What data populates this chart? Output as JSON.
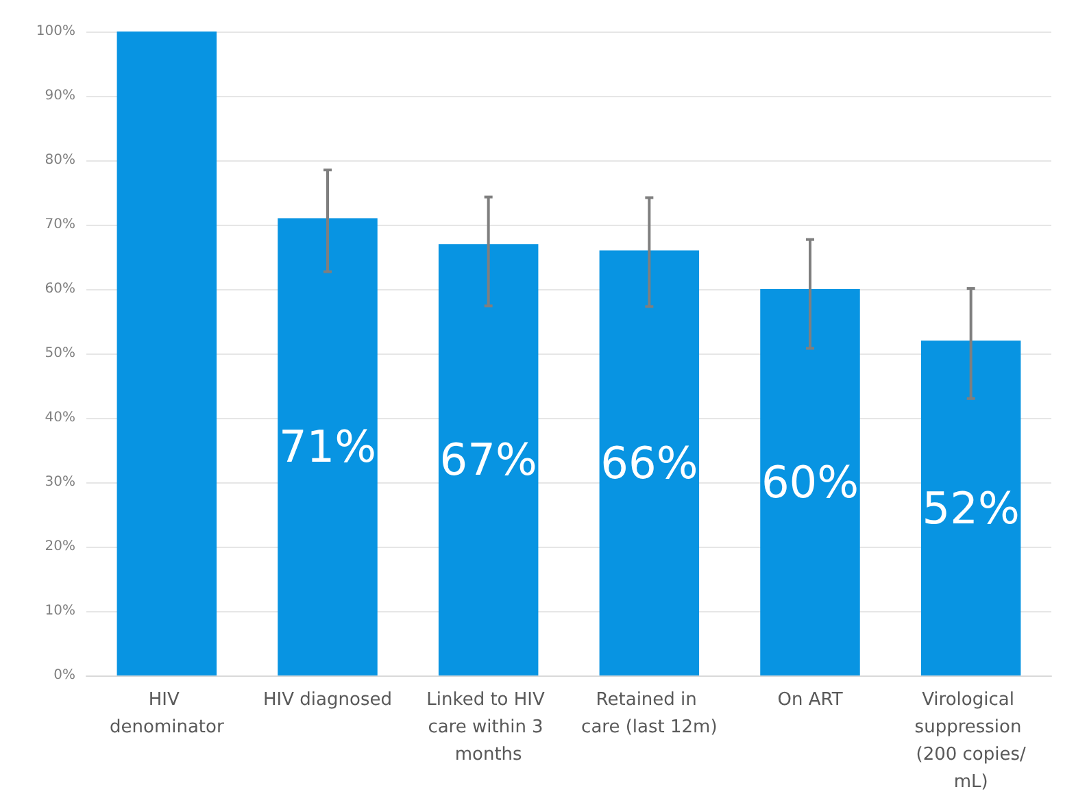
{
  "chart_data": {
    "type": "bar",
    "categories": [
      "HIV denominator",
      "HIV diagnosed",
      "Linked to HIV care within 3 months",
      "Retained in care (last 12m)",
      "On ART",
      "Virological suppression (200 copies/mL)"
    ],
    "values": [
      100,
      71,
      67,
      66,
      60,
      52
    ],
    "value_labels": [
      null,
      "71%",
      "67%",
      "66%",
      "60%",
      "52%"
    ],
    "errors": [
      null,
      [
        62.7,
        78.5
      ],
      [
        57.4,
        74.3
      ],
      [
        57.3,
        74.2
      ],
      [
        50.8,
        67.7
      ],
      [
        43.0,
        60.1
      ]
    ],
    "color": "#0894e2",
    "ylim": [
      0,
      100
    ],
    "yticks": [
      {
        "value": 0,
        "label": "0%"
      },
      {
        "value": 10,
        "label": "10%"
      },
      {
        "value": 20,
        "label": "20%"
      },
      {
        "value": 30,
        "label": "30%"
      },
      {
        "value": 40,
        "label": "40%"
      },
      {
        "value": 50,
        "label": "50%"
      },
      {
        "value": 60,
        "label": "60%"
      },
      {
        "value": 70,
        "label": "70%"
      },
      {
        "value": 80,
        "label": "80%"
      },
      {
        "value": 90,
        "label": "90%"
      },
      {
        "value": 100,
        "label": "100%"
      }
    ],
    "grid": "y"
  }
}
